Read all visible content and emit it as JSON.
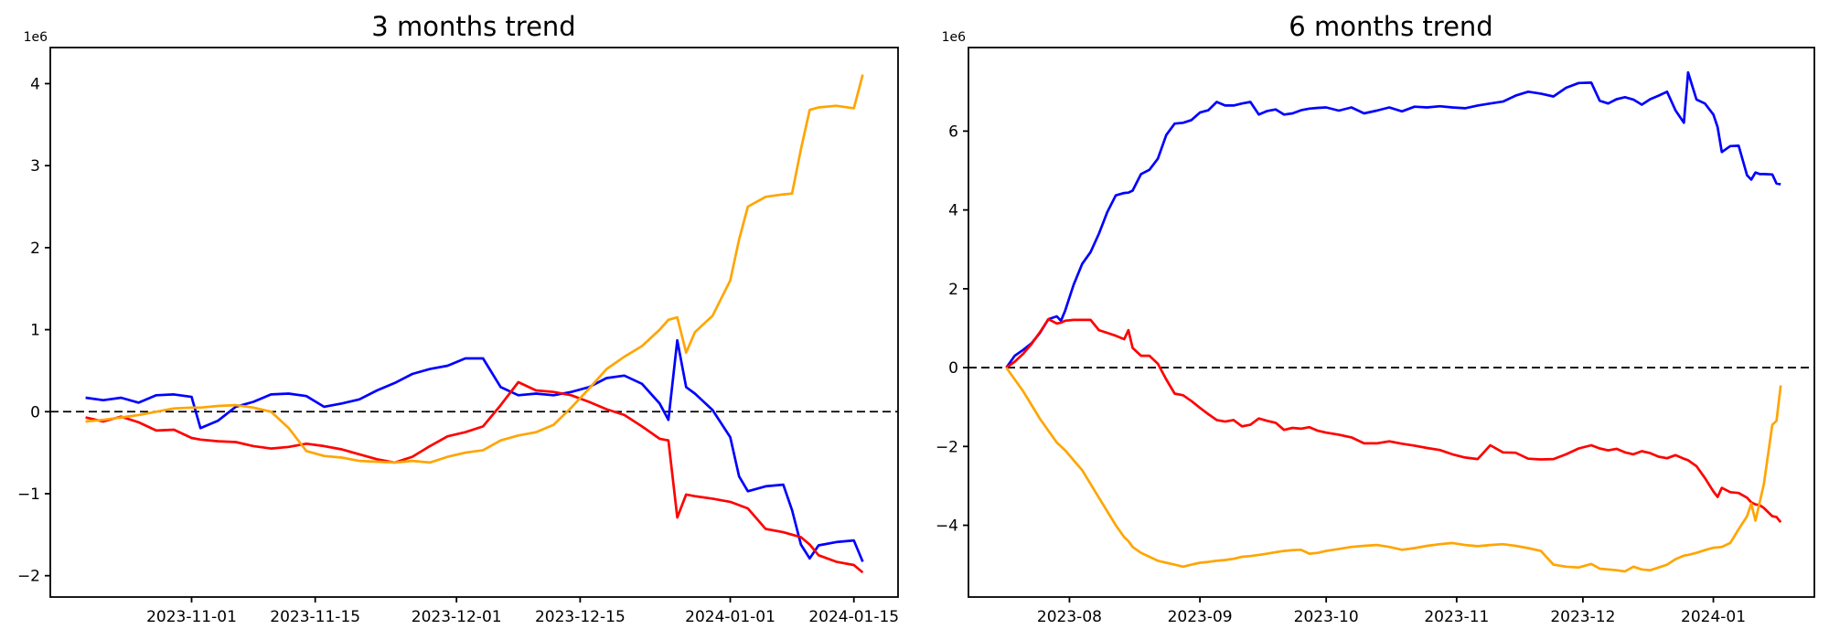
{
  "figure": {
    "background": "#ffffff",
    "text_color": "#000000",
    "axis_color": "#000000"
  },
  "chart_data": [
    {
      "type": "line",
      "title": "3 months trend",
      "offset_label": "1e6",
      "unit_multiplier": 1000000,
      "grid": false,
      "legend": "none",
      "zero_line": {
        "style": "dashed",
        "color": "#000000"
      },
      "xlim": [
        "2023-10-16",
        "2024-01-20"
      ],
      "ylim": [
        -2.26,
        4.44
      ],
      "x_ticks": [
        {
          "date": "2023-11-01",
          "label": "2023-11-01"
        },
        {
          "date": "2023-11-15",
          "label": "2023-11-15"
        },
        {
          "date": "2023-12-01",
          "label": "2023-12-01"
        },
        {
          "date": "2023-12-15",
          "label": "2023-12-15"
        },
        {
          "date": "2024-01-01",
          "label": "2024-01-01"
        },
        {
          "date": "2024-01-15",
          "label": "2024-01-15"
        }
      ],
      "y_ticks": [
        {
          "value": 4,
          "label": "4"
        },
        {
          "value": 3,
          "label": "3"
        },
        {
          "value": 2,
          "label": "2"
        },
        {
          "value": 1,
          "label": "1"
        },
        {
          "value": 0,
          "label": "0"
        },
        {
          "value": -1,
          "label": "−1"
        },
        {
          "value": -2,
          "label": "−2"
        }
      ],
      "dates": [
        "2023-10-20",
        "2023-10-22",
        "2023-10-24",
        "2023-10-26",
        "2023-10-28",
        "2023-10-30",
        "2023-11-01",
        "2023-11-02",
        "2023-11-04",
        "2023-11-06",
        "2023-11-08",
        "2023-11-10",
        "2023-11-12",
        "2023-11-14",
        "2023-11-16",
        "2023-11-18",
        "2023-11-20",
        "2023-11-22",
        "2023-11-24",
        "2023-11-26",
        "2023-11-28",
        "2023-11-30",
        "2023-12-02",
        "2023-12-04",
        "2023-12-06",
        "2023-12-08",
        "2023-12-10",
        "2023-12-12",
        "2023-12-14",
        "2023-12-16",
        "2023-12-18",
        "2023-12-20",
        "2023-12-22",
        "2023-12-24",
        "2023-12-25",
        "2023-12-26",
        "2023-12-27",
        "2023-12-28",
        "2023-12-30",
        "2024-01-01",
        "2024-01-02",
        "2024-01-03",
        "2024-01-05",
        "2024-01-07",
        "2024-01-08",
        "2024-01-09",
        "2024-01-10",
        "2024-01-11",
        "2024-01-13",
        "2024-01-15",
        "2024-01-16"
      ],
      "series": [
        {
          "name": "blue",
          "color": "#0000ff",
          "values": [
            0.17,
            0.14,
            0.17,
            0.11,
            0.2,
            0.21,
            0.18,
            -0.2,
            -0.11,
            0.06,
            0.12,
            0.21,
            0.22,
            0.19,
            0.06,
            0.1,
            0.15,
            0.26,
            0.35,
            0.46,
            0.52,
            0.56,
            0.65,
            0.65,
            0.3,
            0.2,
            0.22,
            0.2,
            0.24,
            0.3,
            0.41,
            0.44,
            0.34,
            0.1,
            -0.1,
            0.87,
            0.3,
            0.22,
            0.02,
            -0.31,
            -0.79,
            -0.97,
            -0.91,
            -0.89,
            -1.2,
            -1.62,
            -1.79,
            -1.63,
            -1.59,
            -1.57,
            -1.83
          ]
        },
        {
          "name": "red",
          "color": "#ff0000",
          "values": [
            -0.07,
            -0.12,
            -0.06,
            -0.13,
            -0.23,
            -0.22,
            -0.32,
            -0.34,
            -0.36,
            -0.37,
            -0.42,
            -0.45,
            -0.43,
            -0.39,
            -0.42,
            -0.46,
            -0.52,
            -0.58,
            -0.62,
            -0.55,
            -0.42,
            -0.3,
            -0.25,
            -0.18,
            0.08,
            0.36,
            0.26,
            0.24,
            0.2,
            0.12,
            0.03,
            -0.04,
            -0.18,
            -0.33,
            -0.35,
            -1.29,
            -1.01,
            -1.03,
            -1.06,
            -1.1,
            -1.14,
            -1.18,
            -1.43,
            -1.47,
            -1.5,
            -1.53,
            -1.62,
            -1.75,
            -1.83,
            -1.87,
            -1.96
          ]
        },
        {
          "name": "orange",
          "color": "#ffa500",
          "values": [
            -0.12,
            -0.1,
            -0.07,
            -0.04,
            0.0,
            0.04,
            0.05,
            0.05,
            0.07,
            0.08,
            0.05,
            0.0,
            -0.2,
            -0.48,
            -0.54,
            -0.56,
            -0.6,
            -0.61,
            -0.62,
            -0.6,
            -0.62,
            -0.55,
            -0.5,
            -0.47,
            -0.35,
            -0.29,
            -0.25,
            -0.16,
            0.05,
            0.28,
            0.52,
            0.67,
            0.8,
            1.0,
            1.12,
            1.15,
            0.72,
            0.97,
            1.17,
            1.6,
            2.1,
            2.5,
            2.62,
            2.65,
            2.66,
            3.2,
            3.68,
            3.71,
            3.73,
            3.7,
            4.11
          ]
        }
      ]
    },
    {
      "type": "line",
      "title": "6 months trend",
      "offset_label": "1e6",
      "unit_multiplier": 1000000,
      "grid": false,
      "legend": "none",
      "zero_line": {
        "style": "dashed",
        "color": "#000000"
      },
      "xlim": [
        "2023-07-08",
        "2024-01-25"
      ],
      "ylim": [
        -5.82,
        8.12
      ],
      "x_ticks": [
        {
          "date": "2023-08-01",
          "label": "2023-08"
        },
        {
          "date": "2023-09-01",
          "label": "2023-09"
        },
        {
          "date": "2023-10-01",
          "label": "2023-10"
        },
        {
          "date": "2023-11-01",
          "label": "2023-11"
        },
        {
          "date": "2023-12-01",
          "label": "2023-12"
        },
        {
          "date": "2024-01-01",
          "label": "2024-01"
        }
      ],
      "y_ticks": [
        {
          "value": 6,
          "label": "6"
        },
        {
          "value": 4,
          "label": "4"
        },
        {
          "value": 2,
          "label": "2"
        },
        {
          "value": 0,
          "label": "0"
        },
        {
          "value": -2,
          "label": "−2"
        },
        {
          "value": -4,
          "label": "−4"
        }
      ],
      "dates": [
        "2023-07-17",
        "2023-07-19",
        "2023-07-21",
        "2023-07-23",
        "2023-07-25",
        "2023-07-27",
        "2023-07-29",
        "2023-07-30",
        "2023-07-31",
        "2023-08-02",
        "2023-08-04",
        "2023-08-06",
        "2023-08-08",
        "2023-08-10",
        "2023-08-12",
        "2023-08-14",
        "2023-08-15",
        "2023-08-16",
        "2023-08-18",
        "2023-08-20",
        "2023-08-22",
        "2023-08-24",
        "2023-08-26",
        "2023-08-28",
        "2023-08-30",
        "2023-09-01",
        "2023-09-03",
        "2023-09-05",
        "2023-09-07",
        "2023-09-09",
        "2023-09-11",
        "2023-09-13",
        "2023-09-15",
        "2023-09-17",
        "2023-09-19",
        "2023-09-21",
        "2023-09-23",
        "2023-09-25",
        "2023-09-27",
        "2023-09-29",
        "2023-10-01",
        "2023-10-04",
        "2023-10-07",
        "2023-10-10",
        "2023-10-13",
        "2023-10-16",
        "2023-10-19",
        "2023-10-22",
        "2023-10-25",
        "2023-10-28",
        "2023-10-31",
        "2023-11-03",
        "2023-11-06",
        "2023-11-09",
        "2023-11-12",
        "2023-11-15",
        "2023-11-18",
        "2023-11-21",
        "2023-11-24",
        "2023-11-27",
        "2023-11-30",
        "2023-12-03",
        "2023-12-05",
        "2023-12-07",
        "2023-12-09",
        "2023-12-11",
        "2023-12-13",
        "2023-12-15",
        "2023-12-17",
        "2023-12-19",
        "2023-12-21",
        "2023-12-23",
        "2023-12-25",
        "2023-12-26",
        "2023-12-28",
        "2023-12-30",
        "2024-01-01",
        "2024-01-02",
        "2024-01-03",
        "2024-01-05",
        "2024-01-07",
        "2024-01-09",
        "2024-01-10",
        "2024-01-11",
        "2024-01-12",
        "2024-01-13",
        "2024-01-15",
        "2024-01-16",
        "2024-01-17"
      ],
      "series": [
        {
          "name": "blue",
          "color": "#0000ff",
          "values": [
            0.0,
            0.3,
            0.45,
            0.62,
            0.88,
            1.23,
            1.3,
            1.19,
            1.45,
            2.1,
            2.63,
            2.93,
            3.4,
            3.95,
            4.37,
            4.43,
            4.44,
            4.49,
            4.91,
            5.02,
            5.3,
            5.9,
            6.19,
            6.21,
            6.28,
            6.47,
            6.53,
            6.74,
            6.65,
            6.65,
            6.7,
            6.74,
            6.42,
            6.51,
            6.55,
            6.42,
            6.45,
            6.53,
            6.57,
            6.59,
            6.6,
            6.52,
            6.6,
            6.45,
            6.52,
            6.6,
            6.5,
            6.62,
            6.6,
            6.63,
            6.6,
            6.58,
            6.65,
            6.7,
            6.75,
            6.9,
            7.0,
            6.95,
            6.88,
            7.1,
            7.22,
            7.23,
            6.77,
            6.7,
            6.81,
            6.86,
            6.8,
            6.67,
            6.81,
            6.9,
            7.0,
            6.53,
            6.21,
            7.49,
            6.8,
            6.7,
            6.42,
            6.1,
            5.47,
            5.62,
            5.63,
            4.88,
            4.77,
            4.95,
            4.91,
            4.91,
            4.9,
            4.67,
            4.65
          ]
        },
        {
          "name": "red",
          "color": "#ff0000",
          "values": [
            0.0,
            0.15,
            0.35,
            0.6,
            0.9,
            1.23,
            1.12,
            1.14,
            1.19,
            1.21,
            1.21,
            1.21,
            0.95,
            0.88,
            0.81,
            0.72,
            0.95,
            0.5,
            0.3,
            0.3,
            0.1,
            -0.3,
            -0.66,
            -0.7,
            -0.85,
            -1.02,
            -1.18,
            -1.33,
            -1.37,
            -1.33,
            -1.49,
            -1.45,
            -1.29,
            -1.35,
            -1.4,
            -1.58,
            -1.53,
            -1.55,
            -1.51,
            -1.6,
            -1.65,
            -1.7,
            -1.77,
            -1.92,
            -1.92,
            -1.87,
            -1.93,
            -1.98,
            -2.04,
            -2.09,
            -2.2,
            -2.28,
            -2.32,
            -1.97,
            -2.15,
            -2.16,
            -2.31,
            -2.33,
            -2.32,
            -2.2,
            -2.05,
            -1.97,
            -2.05,
            -2.1,
            -2.06,
            -2.15,
            -2.2,
            -2.12,
            -2.17,
            -2.26,
            -2.3,
            -2.22,
            -2.31,
            -2.35,
            -2.5,
            -2.8,
            -3.14,
            -3.28,
            -3.05,
            -3.16,
            -3.18,
            -3.3,
            -3.42,
            -3.47,
            -3.49,
            -3.56,
            -3.77,
            -3.79,
            -3.92
          ]
        },
        {
          "name": "orange",
          "color": "#ffa500",
          "values": [
            0.0,
            -0.3,
            -0.6,
            -0.95,
            -1.3,
            -1.6,
            -1.9,
            -2.0,
            -2.1,
            -2.35,
            -2.6,
            -2.95,
            -3.3,
            -3.65,
            -4.0,
            -4.3,
            -4.4,
            -4.55,
            -4.7,
            -4.8,
            -4.9,
            -4.95,
            -5.0,
            -5.05,
            -5.0,
            -4.95,
            -4.93,
            -4.9,
            -4.88,
            -4.85,
            -4.8,
            -4.78,
            -4.75,
            -4.72,
            -4.68,
            -4.65,
            -4.63,
            -4.62,
            -4.72,
            -4.7,
            -4.65,
            -4.6,
            -4.55,
            -4.52,
            -4.5,
            -4.55,
            -4.62,
            -4.58,
            -4.52,
            -4.48,
            -4.45,
            -4.5,
            -4.53,
            -4.5,
            -4.48,
            -4.52,
            -4.58,
            -4.65,
            -5.0,
            -5.05,
            -5.07,
            -4.98,
            -5.1,
            -5.12,
            -5.14,
            -5.17,
            -5.05,
            -5.12,
            -5.14,
            -5.07,
            -5.0,
            -4.86,
            -4.77,
            -4.75,
            -4.7,
            -4.63,
            -4.57,
            -4.56,
            -4.55,
            -4.45,
            -4.1,
            -3.77,
            -3.45,
            -3.88,
            -3.42,
            -2.95,
            -1.45,
            -1.35,
            -0.45
          ]
        }
      ]
    }
  ]
}
